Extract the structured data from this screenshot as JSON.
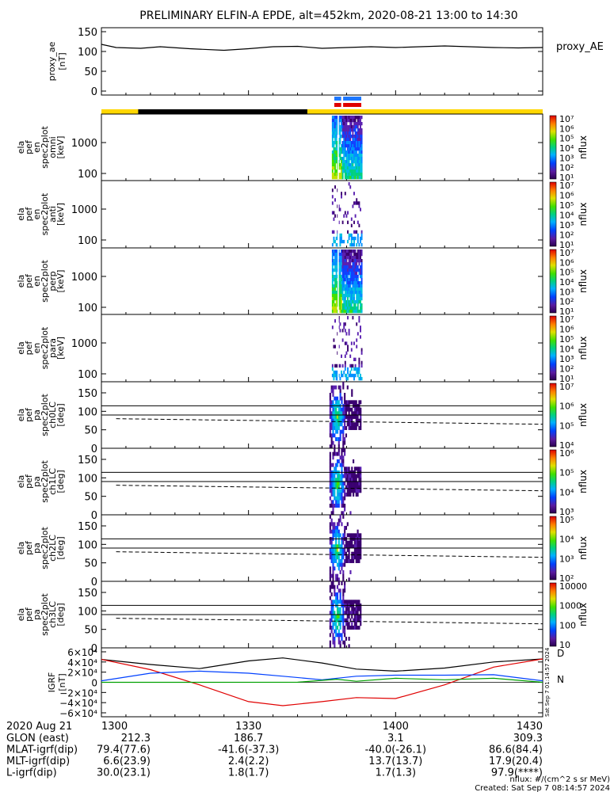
{
  "title": "PRELIMINARY ELFIN-A EPDE, alt=452km, 2020-08-21 13:00 to 14:30",
  "colors": {
    "line": "#000000",
    "sun": "#ffd700",
    "shadow": "#000000",
    "science_red": "#e00000",
    "science_blue": "#1e78ff",
    "bx": "#e00000",
    "by": "#00a000",
    "bz": "#0040ff",
    "bt": "#000000"
  },
  "panels": [
    {
      "id": "proxy_ae",
      "ylabel_lines": [
        "proxy_ae",
        "[nT]"
      ],
      "right_label": "proxy_AE",
      "yticks": [
        "150",
        "100",
        "50",
        "0"
      ],
      "ylim": [
        0,
        160
      ]
    },
    {
      "id": "en_omni",
      "ylabel_lines": [
        "ela",
        "pef",
        "en",
        "spec2plot",
        "omni",
        "[keV]"
      ],
      "yticks": [
        "1000",
        "100"
      ],
      "colorbar_ticks": [
        "10⁷",
        "10⁶",
        "10⁵",
        "10⁴",
        "10³",
        "10²",
        "10¹"
      ],
      "colorbar_label": "nflux"
    },
    {
      "id": "en_anti",
      "ylabel_lines": [
        "ela",
        "pef",
        "en",
        "spec2plot",
        "anti",
        "[keV]"
      ],
      "yticks": [
        "1000",
        "100"
      ],
      "colorbar_ticks": [
        "10⁷",
        "10⁶",
        "10⁵",
        "10⁴",
        "10³",
        "10²",
        "10¹"
      ],
      "colorbar_label": "nflux"
    },
    {
      "id": "en_perp",
      "ylabel_lines": [
        "ela",
        "pef",
        "en",
        "spec2plot",
        "perp",
        "[keV]"
      ],
      "yticks": [
        "1000",
        "100"
      ],
      "colorbar_ticks": [
        "10⁷",
        "10⁶",
        "10⁵",
        "10⁴",
        "10³",
        "10²",
        "10¹"
      ],
      "colorbar_label": "nflux"
    },
    {
      "id": "en_para",
      "ylabel_lines": [
        "ela",
        "pef",
        "en",
        "spec2plot",
        "para",
        "[keV]"
      ],
      "yticks": [
        "1000",
        "100"
      ],
      "colorbar_ticks": [
        "10⁷",
        "10⁶",
        "10⁵",
        "10⁴",
        "10³",
        "10²",
        "10¹"
      ],
      "colorbar_label": "nflux"
    },
    {
      "id": "pa_ch0",
      "ylabel_lines": [
        "ela",
        "pef",
        "pa",
        "spec2plot",
        "ch0LC",
        "[deg]"
      ],
      "yticks": [
        "150",
        "100",
        "50",
        "0"
      ],
      "colorbar_ticks": [
        "10⁷",
        "10⁶",
        "10⁵",
        "10⁴"
      ],
      "colorbar_label": "nflux"
    },
    {
      "id": "pa_ch1",
      "ylabel_lines": [
        "ela",
        "pef",
        "pa",
        "spec2plot",
        "ch1LC",
        "[deg]"
      ],
      "yticks": [
        "150",
        "100",
        "50",
        "0"
      ],
      "colorbar_ticks": [
        "10⁶",
        "10⁵",
        "10⁴",
        "10³"
      ],
      "colorbar_label": "nflux"
    },
    {
      "id": "pa_ch2",
      "ylabel_lines": [
        "ela",
        "pef",
        "pa",
        "spec2plot",
        "ch2LC",
        "[deg]"
      ],
      "yticks": [
        "150",
        "100",
        "50",
        "0"
      ],
      "colorbar_ticks": [
        "10⁵",
        "10⁴",
        "10³",
        "10²"
      ],
      "colorbar_label": "nflux"
    },
    {
      "id": "pa_ch3",
      "ylabel_lines": [
        "ela",
        "pef",
        "pa",
        "spec2plot",
        "ch3LC",
        "[deg]"
      ],
      "yticks": [
        "150",
        "100",
        "50",
        "0"
      ],
      "colorbar_ticks": [
        "10000",
        "1000",
        "100",
        "10"
      ],
      "colorbar_label": "nflux"
    },
    {
      "id": "igrf",
      "ylabel_lines": [
        "IGRF",
        "[nT]"
      ],
      "yticks": [
        "6×10⁴",
        "4×10⁴",
        "2×10⁴",
        "0",
        "−2×10⁴",
        "−4×10⁴",
        "−6×10⁴"
      ],
      "right_labels": [
        "D",
        "N"
      ],
      "side_note": "Sat Sep  7 01:14:57 2024"
    }
  ],
  "chart_data": {
    "type": "line",
    "time_range": [
      "13:00",
      "14:30"
    ],
    "x_minutes_range": [
      0,
      90
    ],
    "proxy_ae": {
      "x": [
        0,
        3,
        8,
        12,
        18,
        25,
        30,
        35,
        40,
        45,
        50,
        55,
        60,
        65,
        70,
        75,
        80,
        85,
        90
      ],
      "values": [
        118,
        110,
        108,
        112,
        107,
        103,
        107,
        112,
        113,
        108,
        110,
        112,
        110,
        112,
        114,
        112,
        110,
        109,
        110
      ],
      "ylim": [
        0,
        160
      ]
    },
    "orbit_bar": {
      "sun_ranges_min": [
        [
          0,
          7.5
        ],
        [
          42,
          90
        ]
      ],
      "shadow_ranges_min": [
        [
          7.5,
          42
        ]
      ]
    },
    "science_zones_min": [
      [
        47.5,
        48.9
      ],
      [
        49.3,
        53.0
      ]
    ],
    "pa_reference_lines_deg": [
      115,
      90
    ],
    "loss_cone_dashed": {
      "x": [
        3,
        90
      ],
      "y": [
        80,
        65
      ]
    },
    "igrf": {
      "ylim": [
        -60000,
        60000
      ],
      "series": [
        {
          "name": "Bt",
          "x": [
            0,
            10,
            20,
            30,
            37,
            45,
            52,
            60,
            70,
            80,
            90
          ],
          "values": [
            45000,
            35000,
            27000,
            42000,
            48000,
            38000,
            26000,
            22000,
            28000,
            40000,
            46000
          ]
        },
        {
          "name": "Bx",
          "x": [
            0,
            10,
            20,
            30,
            37,
            45,
            52,
            60,
            70,
            80,
            90
          ],
          "values": [
            45000,
            25000,
            -5000,
            -38000,
            -46000,
            -38000,
            -30000,
            -32000,
            -5000,
            30000,
            46000
          ]
        },
        {
          "name": "Bz",
          "x": [
            0,
            10,
            20,
            30,
            37,
            45,
            52,
            60,
            70,
            80,
            90
          ],
          "values": [
            3000,
            18000,
            22000,
            18000,
            12000,
            5000,
            12000,
            14000,
            14000,
            15000,
            3000
          ]
        },
        {
          "name": "By",
          "x": [
            0,
            20,
            40,
            48,
            52,
            60,
            70,
            80,
            90
          ],
          "values": [
            0,
            0,
            200,
            6000,
            2000,
            8000,
            5000,
            8000,
            0
          ]
        }
      ]
    },
    "footer": {
      "headers": [
        "2020 Aug 21",
        "1300",
        "1330",
        "1400",
        "1430"
      ],
      "rows": [
        {
          "label": "GLON (east)",
          "values": [
            "212.3",
            "186.7",
            "3.1",
            "309.3"
          ]
        },
        {
          "label": "MLAT-igrf(dip)",
          "values": [
            "79.4(77.6)",
            "-41.6(-37.3)",
            "-40.0(-26.1)",
            "86.6(84.4)"
          ]
        },
        {
          "label": "MLT-igrf(dip)",
          "values": [
            "6.6(23.9)",
            "2.4(2.2)",
            "13.7(13.7)",
            "17.9(20.4)"
          ]
        },
        {
          "label": "L-igrf(dip)",
          "values": [
            "30.0(23.1)",
            "1.8(1.7)",
            "1.7(1.3)",
            "97.9(****)"
          ]
        }
      ],
      "units_note": "nflux: #/(cm^2 s sr MeV)",
      "created": "Created: Sat Sep  7 08:14:57 2024"
    }
  }
}
